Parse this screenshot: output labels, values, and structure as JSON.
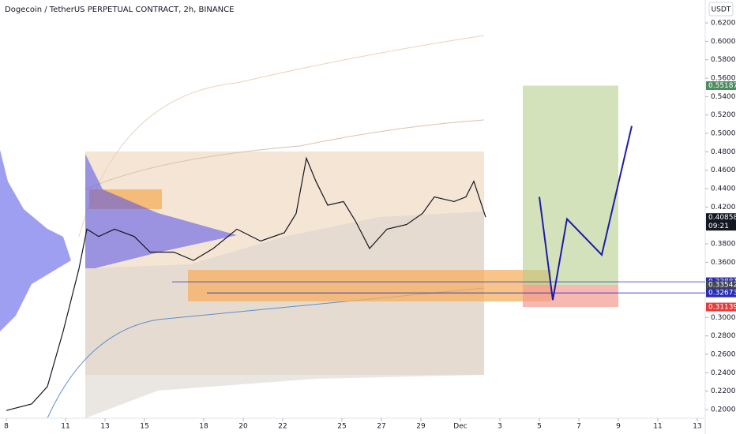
{
  "chart_data": {
    "type": "line",
    "title": "Dogecoin / TetherUS PERPETUAL CONTRACT, 2h, BINANCE",
    "currency": "USDT",
    "xlim": [
      7.68,
      43.4
    ],
    "ylim": [
      0.1906,
      0.6449
    ],
    "xticks": [
      8,
      11,
      13,
      15,
      18,
      20,
      22,
      25,
      27,
      29,
      {
        "value": 31,
        "label": "Dec"
      },
      {
        "value": 33,
        "label": "3"
      },
      {
        "value": 35,
        "label": "5"
      },
      {
        "value": 37,
        "label": "7"
      },
      {
        "value": 39,
        "label": "9"
      },
      {
        "value": 41,
        "label": "11"
      },
      {
        "value": 43,
        "label": "13"
      }
    ],
    "yticks": [
      {
        "value": 0.62,
        "label": "0.62000"
      },
      {
        "value": 0.6,
        "label": "0.60000"
      },
      {
        "value": 0.58,
        "label": "0.58000"
      },
      {
        "value": 0.56,
        "label": "0.56000"
      },
      {
        "value": 0.54,
        "label": "0.54000"
      },
      {
        "value": 0.52,
        "label": "0.52000"
      },
      {
        "value": 0.5,
        "label": "0.50000"
      },
      {
        "value": 0.48,
        "label": "0.48000"
      },
      {
        "value": 0.46,
        "label": "0.46000"
      },
      {
        "value": 0.44,
        "label": "0.44000"
      },
      {
        "value": 0.42,
        "label": "0.42000"
      },
      {
        "value": 0.38,
        "label": "0.38000"
      },
      {
        "value": 0.36,
        "label": "0.36000"
      },
      {
        "value": 0.3,
        "label": "0.30000"
      },
      {
        "value": 0.28,
        "label": "0.28000"
      },
      {
        "value": 0.26,
        "label": "0.26000"
      },
      {
        "value": 0.24,
        "label": "0.24000"
      },
      {
        "value": 0.22,
        "label": "0.22000"
      },
      {
        "value": 0.2,
        "label": "0.20000"
      }
    ],
    "series": [
      {
        "color": "#131722",
        "x": [
          8,
          9.28,
          10.08,
          10.88,
          11.68,
          12.08,
          12.68,
          13.48,
          14.48,
          15.28,
          16.48,
          17.48,
          18.48,
          19.68,
          20.88,
          22.08,
          22.68,
          23.2,
          23.68,
          24.28,
          25.08,
          25.68,
          26.4,
          27.28,
          28.28,
          29.08,
          29.68,
          30.68,
          31.28,
          31.68,
          32.28
        ],
        "values": [
          0.199,
          0.206,
          0.225,
          0.285,
          0.353,
          0.396,
          0.388,
          0.396,
          0.388,
          0.371,
          0.371,
          0.362,
          0.375,
          0.396,
          0.383,
          0.392,
          0.413,
          0.473,
          0.448,
          0.422,
          0.426,
          0.405,
          0.375,
          0.396,
          0.401,
          0.413,
          0.431,
          0.426,
          0.431,
          0.448,
          0.409
        ]
      },
      {
        "color": "#1c1ca8",
        "x": [
          35.0,
          35.68,
          36.4,
          38.16,
          39.68
        ],
        "values": [
          0.431,
          0.319,
          0.407,
          0.368,
          0.508
        ]
      }
    ],
    "price_labels": [
      {
        "value": 0.55187,
        "label": "0.55187",
        "color": "#4c8c5e"
      },
      {
        "value": 0.40858,
        "label": "0.40858",
        "countdown": "09:21",
        "color": "#131722"
      },
      {
        "value": 0.33881,
        "label": "0.33881",
        "color": "#2a2ab8"
      },
      {
        "value": 0.33542,
        "label": "0.33542",
        "color": "#434651"
      },
      {
        "value": 0.32673,
        "label": "0.32673",
        "color": "#2a2ab8"
      },
      {
        "value": 0.31139,
        "label": "0.31139",
        "color": "#e63b3b"
      }
    ]
  }
}
